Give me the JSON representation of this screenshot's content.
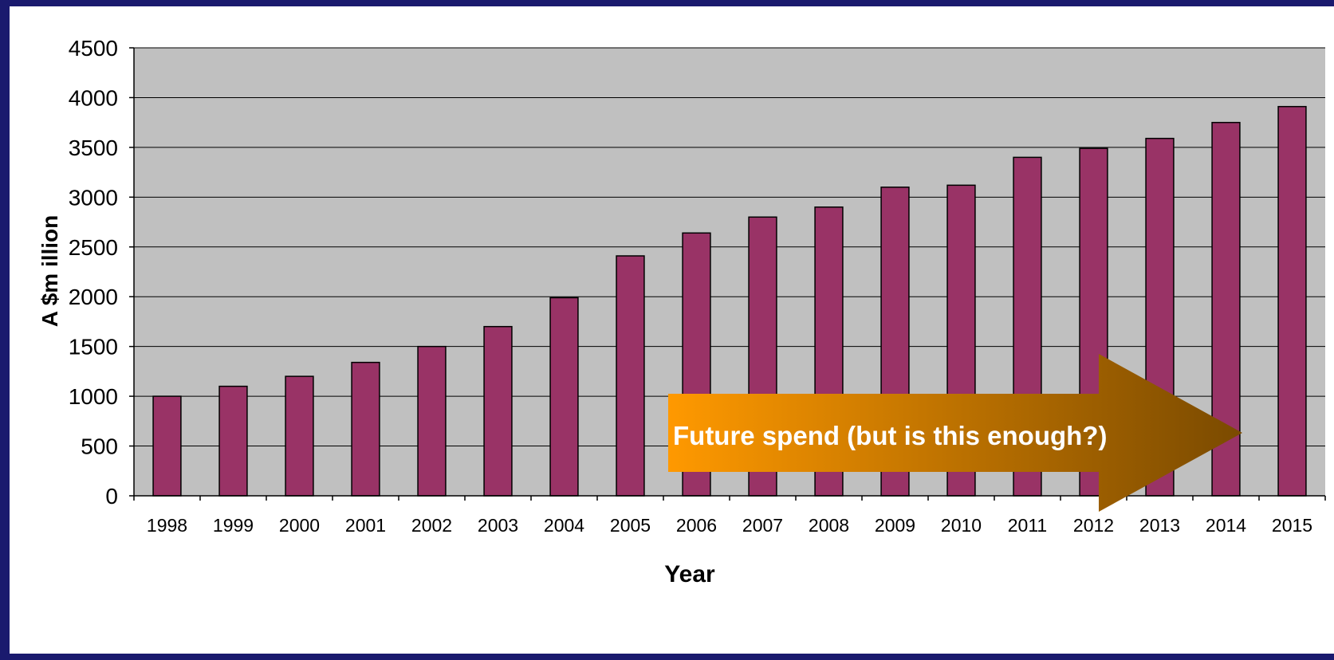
{
  "chart_data": {
    "type": "bar",
    "categories": [
      "1998",
      "1999",
      "2000",
      "2001",
      "2002",
      "2003",
      "2004",
      "2005",
      "2006",
      "2007",
      "2008",
      "2009",
      "2010",
      "2011",
      "2012",
      "2013",
      "2014",
      "2015"
    ],
    "values": [
      1000,
      1100,
      1200,
      1340,
      1500,
      1700,
      1990,
      2410,
      2640,
      2800,
      2900,
      3100,
      3120,
      3400,
      3490,
      3590,
      3750,
      3910
    ],
    "xlabel": "Year",
    "ylabel": "A $m illion",
    "ylim": [
      0,
      4500
    ],
    "yticks": [
      0,
      500,
      1000,
      1500,
      2000,
      2500,
      3000,
      3500,
      4000,
      4500
    ],
    "grid": true,
    "colors": {
      "bar": "#993366",
      "plot_background": "#c0c0c0",
      "frame": "#1a1a6e"
    },
    "annotation": {
      "text": "Future spend (but is this enough?)",
      "shape": "right-arrow",
      "gradient": [
        "#ff9900",
        "#7a4a00"
      ]
    }
  }
}
